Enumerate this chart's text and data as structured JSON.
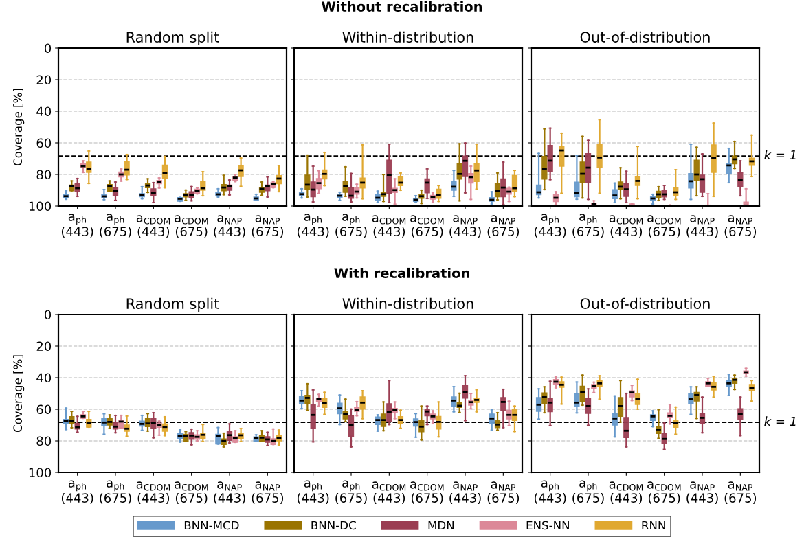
{
  "chart_data": [
    {
      "type": "box",
      "title": "Random split",
      "ylabel": "Coverage [%]",
      "annotations": [
        "Without recalibration"
      ],
      "categories": [
        "a$_{ph}$\n(443)",
        "a$_{ph}$\n(675)",
        "a$_{CDOM}$\n(443)",
        "a$_{CDOM}$\n(675)",
        "a$_{NAP}$\n(443)",
        "a$_{NAP}$\n(675)"
      ],
      "ylim": [
        100,
        0
      ],
      "yticks": [
        0,
        20,
        40,
        60,
        80,
        100
      ],
      "grid": "y",
      "legend": "bottom",
      "ref_lines": [
        {
          "axis": "y",
          "value": 68.3,
          "line_style": "dashed",
          "color": "#000000"
        }
      ],
      "series": [
        {
          "name": "BNN-MCD",
          "color": "#6699cc",
          "boxes": [
            {
              "low": 90.3,
              "q1": 92.9,
              "median": 93.8,
              "q3": 94.9,
              "high": 95.7
            },
            {
              "low": 89.6,
              "q1": 92.9,
              "median": 93.9,
              "q3": 94.9,
              "high": 96.0
            },
            {
              "low": 87.8,
              "q1": 92.2,
              "median": 93.0,
              "q3": 94.2,
              "high": 95.4
            },
            {
              "low": 94.6,
              "q1": 94.6,
              "median": 95.4,
              "q3": 97.0,
              "high": 97.0
            },
            {
              "low": 89.1,
              "q1": 91.4,
              "median": 92.6,
              "q3": 93.6,
              "high": 94.3
            },
            {
              "low": 92.6,
              "q1": 94.3,
              "median": 95.2,
              "q3": 96.4,
              "high": 96.4
            }
          ]
        },
        {
          "name": "BNN-DC",
          "color": "#9a7400",
          "boxes": [
            {
              "low": 84.1,
              "q1": 86.7,
              "median": 87.5,
              "q3": 90.3,
              "high": 90.3
            },
            {
              "low": 84.1,
              "q1": 86.4,
              "median": 87.4,
              "q3": 90.6,
              "high": 90.6
            },
            {
              "low": 82.8,
              "q1": 85.5,
              "median": 87.0,
              "q3": 88.4,
              "high": 91.4
            },
            {
              "low": 89.9,
              "q1": 92.2,
              "median": 93.0,
              "q3": 94.3,
              "high": 96.4
            },
            {
              "low": 80.6,
              "q1": 86.4,
              "median": 88.3,
              "q3": 90.3,
              "high": 92.8
            },
            {
              "low": 84.8,
              "q1": 88.4,
              "median": 89.1,
              "q3": 91.3,
              "high": 93.2
            }
          ]
        },
        {
          "name": "MDN",
          "color": "#9b3d52",
          "boxes": [
            {
              "low": 82.6,
              "q1": 86.0,
              "median": 88.7,
              "q3": 91.0,
              "high": 93.9
            },
            {
              "low": 84.8,
              "q1": 88.4,
              "median": 90.4,
              "q3": 93.2,
              "high": 96.4
            },
            {
              "low": 85.2,
              "q1": 89.1,
              "median": 91.7,
              "q3": 93.6,
              "high": 97.8
            },
            {
              "low": 87.7,
              "q1": 91.0,
              "median": 93.2,
              "q3": 94.6,
              "high": 96.7
            },
            {
              "low": 83.5,
              "q1": 86.7,
              "median": 87.5,
              "q3": 90.0,
              "high": 93.0
            },
            {
              "low": 81.6,
              "q1": 86.7,
              "median": 87.5,
              "q3": 90.3,
              "high": 94.3
            }
          ]
        },
        {
          "name": "ENS-NN",
          "color": "#dc8898",
          "boxes": [
            {
              "low": 71.4,
              "q1": 72.9,
              "median": 74.8,
              "q3": 75.8,
              "high": 78.7
            },
            {
              "low": 76.5,
              "q1": 78.4,
              "median": 80.0,
              "q3": 81.6,
              "high": 84.2
            },
            {
              "low": 82.2,
              "q1": 83.8,
              "median": 84.6,
              "q3": 85.9,
              "high": 88.6
            },
            {
              "low": 88.6,
              "q1": 89.3,
              "median": 90.3,
              "q3": 92.2,
              "high": 92.3
            },
            {
              "low": 80.1,
              "q1": 81.2,
              "median": 82.0,
              "q3": 83.8,
              "high": 84.5
            },
            {
              "low": 84.5,
              "q1": 85.2,
              "median": 86.2,
              "q3": 88.3,
              "high": 88.4
            }
          ]
        },
        {
          "name": "RNN",
          "color": "#e0a830",
          "boxes": [
            {
              "low": 65.2,
              "q1": 72.2,
              "median": 76.5,
              "q3": 78.7,
              "high": 85.7
            },
            {
              "low": 67.4,
              "q1": 71.9,
              "median": 77.0,
              "q3": 80.4,
              "high": 83.2
            },
            {
              "low": 68.6,
              "q1": 74.1,
              "median": 79.1,
              "q3": 82.3,
              "high": 88.4
            },
            {
              "low": 78.3,
              "q1": 84.5,
              "median": 88.7,
              "q3": 90.0,
              "high": 93.5
            },
            {
              "low": 69.6,
              "q1": 74.3,
              "median": 77.4,
              "q3": 81.3,
              "high": 87.5
            },
            {
              "low": 74.5,
              "q1": 80.7,
              "median": 82.6,
              "q3": 85.9,
              "high": 90.9
            }
          ]
        }
      ]
    },
    {
      "type": "box",
      "title": "Within-distribution",
      "categories": [
        "a$_{ph}$\n(443)",
        "a$_{ph}$\n(675)",
        "a$_{CDOM}$\n(443)",
        "a$_{CDOM}$\n(675)",
        "a$_{NAP}$\n(443)",
        "a$_{NAP}$\n(675)"
      ],
      "ylim": [
        100,
        0
      ],
      "yticks": [
        0,
        20,
        40,
        60,
        80,
        100
      ],
      "tick_labels": "x",
      "grid": "y",
      "ref_lines": [
        {
          "axis": "y",
          "value": 68.3,
          "line_style": "dashed",
          "color": "#000000"
        }
      ],
      "series": [
        {
          "color": "#6699cc",
          "boxes": [
            {
              "low": 89.1,
              "q1": 91.3,
              "median": 92.5,
              "q3": 93.2,
              "high": 94.9
            },
            {
              "low": 91.3,
              "q1": 92.6,
              "median": 93.5,
              "q3": 94.6,
              "high": 96.4
            },
            {
              "low": 90.6,
              "q1": 92.9,
              "median": 94.8,
              "q3": 96.4,
              "high": 97.8
            },
            {
              "low": 93.5,
              "q1": 95.1,
              "median": 96.1,
              "q3": 97.1,
              "high": 97.8
            },
            {
              "low": 77.5,
              "q1": 84.2,
              "median": 87.8,
              "q3": 90.0,
              "high": 93.9
            },
            {
              "low": 91.0,
              "q1": 94.6,
              "median": 96.1,
              "q3": 97.0,
              "high": 98.7
            }
          ]
        },
        {
          "color": "#9a7400",
          "boxes": [
            {
              "low": 67.8,
              "q1": 80.4,
              "median": 86.5,
              "q3": 89.3,
              "high": 94.3
            },
            {
              "low": 75.2,
              "q1": 84.2,
              "median": 87.4,
              "q3": 91.3,
              "high": 93.9
            },
            {
              "low": 80.1,
              "q1": 91.4,
              "median": 92.5,
              "q3": 93.9,
              "high": 97.1
            },
            {
              "low": 90.0,
              "q1": 92.6,
              "median": 93.8,
              "q3": 95.1,
              "high": 98.4
            },
            {
              "low": 60.6,
              "q1": 73.3,
              "median": 79.7,
              "q3": 83.0,
              "high": 96.7
            },
            {
              "low": 79.1,
              "q1": 85.9,
              "median": 90.4,
              "q3": 94.2,
              "high": 96.1
            }
          ]
        },
        {
          "color": "#9b3d52",
          "boxes": [
            {
              "low": 74.8,
              "q1": 84.8,
              "median": 89.6,
              "q3": 94.2,
              "high": 97.4
            },
            {
              "low": 79.4,
              "q1": 88.1,
              "median": 93.5,
              "q3": 95.1,
              "high": 97.4
            },
            {
              "low": 60.9,
              "q1": 71.0,
              "median": 80.4,
              "q3": 92.0,
              "high": 97.8
            },
            {
              "low": 76.5,
              "q1": 82.8,
              "median": 85.2,
              "q3": 91.7,
              "high": 95.2
            },
            {
              "low": 60.1,
              "q1": 68.3,
              "median": 71.4,
              "q3": 81.3,
              "high": 91.7
            },
            {
              "low": 72.2,
              "q1": 82.8,
              "median": 88.3,
              "q3": 94.2,
              "high": 99.0
            }
          ]
        },
        {
          "color": "#dc8898",
          "boxes": [
            {
              "low": 77.7,
              "q1": 82.6,
              "median": 85.5,
              "q3": 89.1,
              "high": 92.0
            },
            {
              "low": 86.2,
              "q1": 88.1,
              "median": 90.9,
              "q3": 92.5,
              "high": 94.9
            },
            {
              "low": 82.8,
              "q1": 88.8,
              "median": 89.9,
              "q3": 91.4,
              "high": 98.8
            },
            {
              "low": 91.4,
              "q1": 93.2,
              "median": 94.2,
              "q3": 95.7,
              "high": 97.8
            },
            {
              "low": 74.8,
              "q1": 79.4,
              "median": 81.7,
              "q3": 85.5,
              "high": 95.8
            },
            {
              "low": 88.1,
              "q1": 88.8,
              "median": 90.9,
              "q3": 92.5,
              "high": 97.1
            }
          ]
        },
        {
          "color": "#e0a830",
          "boxes": [
            {
              "low": 66.1,
              "q1": 77.2,
              "median": 79.7,
              "q3": 82.8,
              "high": 87.1
            },
            {
              "low": 61.3,
              "q1": 82.3,
              "median": 85.2,
              "q3": 88.6,
              "high": 95.4
            },
            {
              "low": 79.1,
              "q1": 81.2,
              "median": 85.2,
              "q3": 87.1,
              "high": 90.0
            },
            {
              "low": 87.1,
              "q1": 89.3,
              "median": 93.0,
              "q3": 95.1,
              "high": 97.1
            },
            {
              "low": 60.9,
              "q1": 73.2,
              "median": 77.5,
              "q3": 84.5,
              "high": 89.3
            },
            {
              "low": 77.5,
              "q1": 80.6,
              "median": 88.7,
              "q3": 91.0,
              "high": 94.1
            }
          ]
        }
      ]
    },
    {
      "type": "box",
      "title": "Out-of-distribution",
      "annotations": [
        "k = 1"
      ],
      "categories": [
        "a$_{ph}$\n(443)",
        "a$_{ph}$\n(675)",
        "a$_{CDOM}$\n(443)",
        "a$_{CDOM}$\n(675)",
        "a$_{NAP}$\n(443)",
        "a$_{NAP}$\n(675)"
      ],
      "ylim": [
        100,
        0
      ],
      "yticks": [
        0,
        20,
        40,
        60,
        80,
        100
      ],
      "tick_labels": "x",
      "grid": "y",
      "ref_lines": [
        {
          "axis": "y",
          "value": 68.3,
          "line_style": "dashed",
          "color": "#000000"
        }
      ],
      "series": [
        {
          "color": "#6699cc",
          "boxes": [
            {
              "low": 66.7,
              "q1": 86.7,
              "median": 91.3,
              "q3": 92.9,
              "high": 94.9
            },
            {
              "low": 68.0,
              "q1": 84.9,
              "median": 91.7,
              "q3": 94.2,
              "high": 95.7
            },
            {
              "low": 85.5,
              "q1": 89.6,
              "median": 93.3,
              "q3": 95.4,
              "high": 97.8
            },
            {
              "low": 92.6,
              "q1": 94.2,
              "median": 95.2,
              "q3": 96.4,
              "high": 98.7
            },
            {
              "low": 60.9,
              "q1": 79.4,
              "median": 84.3,
              "q3": 88.6,
              "high": 95.8
            },
            {
              "low": 63.5,
              "q1": 73.3,
              "median": 74.3,
              "q3": 79.7,
              "high": 85.2
            }
          ]
        },
        {
          "color": "#9a7400",
          "boxes": [
            {
              "low": 51.2,
              "q1": 68.6,
              "median": 76.5,
              "q3": 83.0,
              "high": 89.6
            },
            {
              "low": 55.9,
              "q1": 72.2,
              "median": 79.6,
              "q3": 84.9,
              "high": 94.9
            },
            {
              "low": 75.8,
              "q1": 84.8,
              "median": 87.8,
              "q3": 89.6,
              "high": 95.4
            },
            {
              "low": 87.8,
              "q1": 90.6,
              "median": 92.6,
              "q3": 94.6,
              "high": 96.5
            },
            {
              "low": 62.8,
              "q1": 71.0,
              "median": 80.0,
              "q3": 83.8,
              "high": 93.5
            },
            {
              "low": 59.1,
              "q1": 68.3,
              "median": 70.4,
              "q3": 73.3,
              "high": 76.2
            }
          ]
        },
        {
          "color": "#9b3d52",
          "boxes": [
            {
              "low": 50.7,
              "q1": 61.6,
              "median": 71.3,
              "q3": 78.3,
              "high": 83.3
            },
            {
              "low": 58.4,
              "q1": 66.8,
              "median": 75.7,
              "q3": 84.9,
              "high": 95.8
            },
            {
              "low": 78.0,
              "q1": 85.9,
              "median": 89.4,
              "q3": 93.9,
              "high": 97.8
            },
            {
              "low": 87.0,
              "q1": 90.3,
              "median": 92.6,
              "q3": 94.3,
              "high": 95.8
            },
            {
              "low": 67.0,
              "q1": 80.4,
              "median": 83.0,
              "q3": 91.3,
              "high": 93.9
            },
            {
              "low": 71.4,
              "q1": 78.7,
              "median": 83.5,
              "q3": 87.7,
              "high": 93.5
            }
          ]
        },
        {
          "color": "#dc8898",
          "boxes": [
            {
              "low": 91.0,
              "q1": 92.6,
              "median": 94.8,
              "q3": 97.2,
              "high": 99.0
            },
            {
              "low": 96.7,
              "q1": 98.1,
              "median": 98.7,
              "q3": 100,
              "high": 100
            },
            {
              "low": 98.7,
              "q1": 98.7,
              "median": 99.8,
              "q3": 100,
              "high": 100
            },
            {
              "low": 99.4,
              "q1": 99.6,
              "median": 99.8,
              "q3": 100,
              "high": 100
            },
            {
              "low": 92.2,
              "q1": 99.4,
              "median": 99.9,
              "q3": 100,
              "high": 100
            },
            {
              "low": 89.1,
              "q1": 97.5,
              "median": 99.7,
              "q3": 100,
              "high": 100
            }
          ]
        },
        {
          "color": "#e0a830",
          "boxes": [
            {
              "low": 53.9,
              "q1": 62.5,
              "median": 64.8,
              "q3": 74.8,
              "high": 91.9
            },
            {
              "low": 45.4,
              "q1": 61.0,
              "median": 69.3,
              "q3": 75.8,
              "high": 91.9
            },
            {
              "low": 62.3,
              "q1": 81.2,
              "median": 84.1,
              "q3": 87.0,
              "high": 95.4
            },
            {
              "low": 77.0,
              "q1": 88.1,
              "median": 91.3,
              "q3": 93.2,
              "high": 95.8
            },
            {
              "low": 47.5,
              "q1": 61.3,
              "median": 69.6,
              "q3": 78.7,
              "high": 93.9
            },
            {
              "low": 55.1,
              "q1": 69.6,
              "median": 71.7,
              "q3": 74.3,
              "high": 81.3
            }
          ]
        }
      ]
    },
    {
      "type": "box",
      "title": "Random split",
      "ylabel": "Coverage [%]",
      "annotations": [
        "With recalibration"
      ],
      "categories": [
        "a$_{ph}$\n(443)",
        "a$_{ph}$\n(675)",
        "a$_{CDOM}$\n(443)",
        "a$_{CDOM}$\n(675)",
        "a$_{NAP}$\n(443)",
        "a$_{NAP}$\n(675)"
      ],
      "ylim": [
        100,
        0
      ],
      "yticks": [
        0,
        20,
        40,
        60,
        80,
        100
      ],
      "grid": "y",
      "ref_lines": [
        {
          "axis": "y",
          "value": 68.3,
          "line_style": "dashed",
          "color": "#000000"
        }
      ],
      "series": [
        {
          "color": "#6699cc",
          "boxes": [
            {
              "low": 59.3,
              "q1": 66.4,
              "median": 67.5,
              "q3": 68.8,
              "high": 72.8
            },
            {
              "low": 62.9,
              "q1": 65.9,
              "median": 68.4,
              "q3": 70.4,
              "high": 75.8
            },
            {
              "low": 63.9,
              "q1": 67.5,
              "median": 69.3,
              "q3": 70.7,
              "high": 73.3
            },
            {
              "low": 73.0,
              "q1": 75.4,
              "median": 77.0,
              "q3": 78.4,
              "high": 80.7
            },
            {
              "low": 71.6,
              "q1": 75.8,
              "median": 77.0,
              "q3": 82.0,
              "high": 82.0
            },
            {
              "low": 76.2,
              "q1": 77.5,
              "median": 78.4,
              "q3": 80.1,
              "high": 80.1
            }
          ]
        },
        {
          "color": "#9a7400",
          "boxes": [
            {
              "low": 61.4,
              "q1": 64.6,
              "median": 67.5,
              "q3": 69.0,
              "high": 71.7
            },
            {
              "low": 63.6,
              "q1": 65.7,
              "median": 68.0,
              "q3": 70.0,
              "high": 72.0
            },
            {
              "low": 62.8,
              "q1": 65.9,
              "median": 69.0,
              "q3": 71.0,
              "high": 73.8
            },
            {
              "low": 74.2,
              "q1": 75.8,
              "median": 77.0,
              "q3": 80.1,
              "high": 80.3
            },
            {
              "low": 75.2,
              "q1": 78.8,
              "median": 80.1,
              "q3": 82.3,
              "high": 83.8
            },
            {
              "low": 73.6,
              "q1": 76.5,
              "median": 78.0,
              "q3": 80.3,
              "high": 80.3
            }
          ]
        },
        {
          "color": "#9b3d52",
          "boxes": [
            {
              "low": 64.5,
              "q1": 69.0,
              "median": 71.3,
              "q3": 72.5,
              "high": 74.5
            },
            {
              "low": 63.9,
              "q1": 68.6,
              "median": 71.0,
              "q3": 72.5,
              "high": 74.9
            },
            {
              "low": 62.2,
              "q1": 65.9,
              "median": 68.8,
              "q3": 72.2,
              "high": 78.1
            },
            {
              "low": 72.6,
              "q1": 74.8,
              "median": 76.7,
              "q3": 79.1,
              "high": 82.5
            },
            {
              "low": 69.3,
              "q1": 73.9,
              "median": 76.4,
              "q3": 79.7,
              "high": 81.3
            },
            {
              "low": 74.6,
              "q1": 77.4,
              "median": 79.1,
              "q3": 80.9,
              "high": 82.9
            }
          ]
        },
        {
          "color": "#dc8898",
          "boxes": [
            {
              "low": 61.4,
              "q1": 63.5,
              "median": 64.5,
              "q3": 65.7,
              "high": 65.7
            },
            {
              "low": 63.9,
              "q1": 66.8,
              "median": 67.8,
              "q3": 71.9,
              "high": 72.0
            },
            {
              "low": 67.5,
              "q1": 68.8,
              "median": 70.1,
              "q3": 71.4,
              "high": 76.4
            },
            {
              "low": 73.6,
              "q1": 76.2,
              "median": 77.5,
              "q3": 79.1,
              "high": 80.0
            },
            {
              "low": 73.6,
              "q1": 77.4,
              "median": 78.4,
              "q3": 80.9,
              "high": 80.9
            },
            {
              "low": 72.5,
              "q1": 78.7,
              "median": 80.1,
              "q3": 82.3,
              "high": 82.3
            }
          ]
        },
        {
          "color": "#e0a830",
          "boxes": [
            {
              "low": 61.4,
              "q1": 66.4,
              "median": 68.7,
              "q3": 71.3,
              "high": 71.3
            },
            {
              "low": 64.3,
              "q1": 70.0,
              "median": 72.3,
              "q3": 73.9,
              "high": 77.1
            },
            {
              "low": 64.8,
              "q1": 69.3,
              "median": 71.2,
              "q3": 73.9,
              "high": 76.7
            },
            {
              "low": 69.7,
              "q1": 75.1,
              "median": 76.2,
              "q3": 78.4,
              "high": 80.4
            },
            {
              "low": 72.2,
              "q1": 75.1,
              "median": 76.5,
              "q3": 78.4,
              "high": 80.4
            },
            {
              "low": 73.2,
              "q1": 76.8,
              "median": 78.4,
              "q3": 80.0,
              "high": 82.6
            }
          ]
        }
      ]
    },
    {
      "type": "box",
      "title": "Within-distribution",
      "categories": [
        "a$_{ph}$\n(443)",
        "a$_{ph}$\n(675)",
        "a$_{CDOM}$\n(443)",
        "a$_{CDOM}$\n(675)",
        "a$_{NAP}$\n(443)",
        "a$_{NAP}$\n(675)"
      ],
      "ylim": [
        100,
        0
      ],
      "yticks": [
        0,
        20,
        40,
        60,
        80,
        100
      ],
      "tick_labels": "x",
      "grid": "y",
      "ref_lines": [
        {
          "axis": "y",
          "value": 68.3,
          "line_style": "dashed",
          "color": "#000000"
        }
      ],
      "series": [
        {
          "color": "#6699cc",
          "boxes": [
            {
              "low": 48.3,
              "q1": 51.6,
              "median": 54.5,
              "q3": 56.5,
              "high": 59.6
            },
            {
              "low": 51.0,
              "q1": 56.2,
              "median": 59.4,
              "q3": 62.8,
              "high": 69.7
            },
            {
              "low": 63.6,
              "q1": 64.9,
              "median": 66.8,
              "q3": 69.7,
              "high": 73.8
            },
            {
              "low": 62.8,
              "q1": 66.1,
              "median": 68.1,
              "q3": 70.7,
              "high": 77.7
            },
            {
              "low": 45.7,
              "q1": 52.2,
              "median": 54.5,
              "q3": 58.0,
              "high": 61.6
            },
            {
              "low": 60.3,
              "q1": 63.0,
              "median": 65.8,
              "q3": 69.0,
              "high": 73.2
            }
          ]
        },
        {
          "color": "#9a7400",
          "boxes": [
            {
              "low": 43.9,
              "q1": 51.2,
              "median": 52.8,
              "q3": 56.2,
              "high": 60.6
            },
            {
              "low": 53.6,
              "q1": 61.3,
              "median": 63.2,
              "q3": 66.1,
              "high": 67.8
            },
            {
              "low": 55.4,
              "q1": 63.0,
              "median": 66.8,
              "q3": 70.9,
              "high": 73.6
            },
            {
              "low": 58.0,
              "q1": 67.0,
              "median": 71.0,
              "q3": 74.3,
              "high": 79.4
            },
            {
              "low": 49.9,
              "q1": 55.9,
              "median": 57.8,
              "q3": 58.8,
              "high": 62.0
            },
            {
              "low": 62.2,
              "q1": 67.0,
              "median": 69.7,
              "q3": 71.7,
              "high": 73.2
            }
          ]
        },
        {
          "color": "#9b3d52",
          "boxes": [
            {
              "low": 47.8,
              "q1": 57.0,
              "median": 63.6,
              "q3": 71.9,
              "high": 80.6
            },
            {
              "low": 59.9,
              "q1": 63.9,
              "median": 70.1,
              "q3": 77.2,
              "high": 83.8
            },
            {
              "low": 41.9,
              "q1": 56.5,
              "median": 61.9,
              "q3": 67.8,
              "high": 69.7
            },
            {
              "low": 58.0,
              "q1": 59.9,
              "median": 61.4,
              "q3": 64.2,
              "high": 69.7
            },
            {
              "low": 38.8,
              "q1": 44.6,
              "median": 49.3,
              "q3": 53.0,
              "high": 67.2
            },
            {
              "low": 47.4,
              "q1": 52.6,
              "median": 55.4,
              "q3": 61.0,
              "high": 71.6
            }
          ]
        },
        {
          "color": "#dc8898",
          "boxes": [
            {
              "low": 50.6,
              "q1": 52.9,
              "median": 53.6,
              "q3": 55.1,
              "high": 58.0
            },
            {
              "low": 55.2,
              "q1": 58.7,
              "median": 60.6,
              "q3": 61.3,
              "high": 64.1
            },
            {
              "low": 55.4,
              "q1": 59.4,
              "median": 60.6,
              "q3": 62.2,
              "high": 65.9
            },
            {
              "low": 61.0,
              "q1": 63.0,
              "median": 64.5,
              "q3": 66.1,
              "high": 68.8
            },
            {
              "low": 50.1,
              "q1": 54.5,
              "median": 55.5,
              "q3": 57.4,
              "high": 59.7
            },
            {
              "low": 54.9,
              "q1": 60.6,
              "median": 63.6,
              "q3": 66.1,
              "high": 70.3
            }
          ]
        },
        {
          "color": "#e0a830",
          "boxes": [
            {
              "low": 49.3,
              "q1": 53.3,
              "median": 56.2,
              "q3": 58.8,
              "high": 63.2
            },
            {
              "low": 48.3,
              "q1": 52.2,
              "median": 55.8,
              "q3": 59.9,
              "high": 65.9
            },
            {
              "low": 60.6,
              "q1": 64.6,
              "median": 66.8,
              "q3": 69.0,
              "high": 72.0
            },
            {
              "low": 55.4,
              "q1": 64.5,
              "median": 68.0,
              "q3": 72.5,
              "high": 77.5
            },
            {
              "low": 47.7,
              "q1": 53.3,
              "median": 54.1,
              "q3": 55.7,
              "high": 61.6
            },
            {
              "low": 58.0,
              "q1": 60.3,
              "median": 63.6,
              "q3": 67.1,
              "high": 74.1
            }
          ]
        }
      ]
    },
    {
      "type": "box",
      "title": "Out-of-distribution",
      "annotations": [
        "k = 1"
      ],
      "categories": [
        "a$_{ph}$\n(443)",
        "a$_{ph}$\n(675)",
        "a$_{CDOM}$\n(443)",
        "a$_{CDOM}$\n(675)",
        "a$_{NAP}$\n(443)",
        "a$_{NAP}$\n(675)"
      ],
      "ylim": [
        100,
        0
      ],
      "yticks": [
        0,
        20,
        40,
        60,
        80,
        100
      ],
      "tick_labels": "x",
      "grid": "y",
      "ref_lines": [
        {
          "axis": "y",
          "value": 68.3,
          "line_style": "dashed",
          "color": "#000000"
        }
      ],
      "series": [
        {
          "color": "#6699cc",
          "boxes": [
            {
              "low": 47.1,
              "q1": 52.6,
              "median": 57.1,
              "q3": 61.3,
              "high": 66.2
            },
            {
              "low": 42.8,
              "q1": 50.0,
              "median": 55.8,
              "q3": 58.3,
              "high": 62.3
            },
            {
              "low": 51.6,
              "q1": 62.8,
              "median": 65.8,
              "q3": 70.0,
              "high": 77.5
            },
            {
              "low": 61.0,
              "q1": 63.5,
              "median": 64.5,
              "q3": 67.1,
              "high": 71.0
            },
            {
              "low": 45.8,
              "q1": 50.0,
              "median": 53.6,
              "q3": 56.7,
              "high": 63.2
            },
            {
              "low": 38.0,
              "q1": 41.7,
              "median": 43.6,
              "q3": 45.4,
              "high": 51.2
            }
          ]
        },
        {
          "color": "#9a7400",
          "boxes": [
            {
              "low": 45.8,
              "q1": 49.7,
              "median": 52.3,
              "q3": 56.5,
              "high": 62.2
            },
            {
              "low": 38.4,
              "q1": 45.4,
              "median": 49.3,
              "q3": 55.2,
              "high": 57.4
            },
            {
              "low": 41.9,
              "q1": 52.6,
              "median": 58.0,
              "q3": 64.5,
              "high": 68.1
            },
            {
              "low": 60.3,
              "q1": 71.0,
              "median": 72.8,
              "q3": 75.4,
              "high": 78.4
            },
            {
              "low": 45.8,
              "q1": 49.3,
              "median": 51.0,
              "q3": 54.8,
              "high": 65.8
            },
            {
              "low": 38.4,
              "q1": 40.3,
              "median": 41.4,
              "q3": 43.6,
              "high": 47.5
            }
          ]
        },
        {
          "color": "#9b3d52",
          "boxes": [
            {
              "low": 42.3,
              "q1": 53.3,
              "median": 55.8,
              "q3": 61.6,
              "high": 70.3
            },
            {
              "low": 47.1,
              "q1": 53.0,
              "median": 58.0,
              "q3": 62.6,
              "high": 70.1
            },
            {
              "low": 50.0,
              "q1": 65.2,
              "median": 73.6,
              "q3": 78.0,
              "high": 83.8
            },
            {
              "low": 68.8,
              "q1": 75.1,
              "median": 78.8,
              "q3": 81.9,
              "high": 85.4
            },
            {
              "low": 52.3,
              "q1": 62.8,
              "median": 65.4,
              "q3": 68.8,
              "high": 74.9
            },
            {
              "low": 52.3,
              "q1": 59.6,
              "median": 63.2,
              "q3": 66.5,
              "high": 76.7
            }
          ]
        },
        {
          "color": "#dc8898",
          "boxes": [
            {
              "low": 39.3,
              "q1": 41.2,
              "median": 42.6,
              "q3": 44.3,
              "high": 46.4
            },
            {
              "low": 42.9,
              "q1": 44.3,
              "median": 45.4,
              "q3": 46.8,
              "high": 49.4
            },
            {
              "low": 44.9,
              "q1": 48.3,
              "median": 49.4,
              "q3": 52.2,
              "high": 54.5
            },
            {
              "low": 57.1,
              "q1": 62.3,
              "median": 64.1,
              "q3": 65.2,
              "high": 69.3
            },
            {
              "low": 40.4,
              "q1": 42.6,
              "median": 43.6,
              "q3": 45.4,
              "high": 45.4
            },
            {
              "low": 34.1,
              "q1": 35.7,
              "median": 36.5,
              "q3": 37.4,
              "high": 39.0
            }
          ]
        },
        {
          "color": "#e0a830",
          "boxes": [
            {
              "low": 39.7,
              "q1": 42.6,
              "median": 44.5,
              "q3": 46.1,
              "high": 56.7
            },
            {
              "low": 38.8,
              "q1": 41.7,
              "median": 43.6,
              "q3": 45.7,
              "high": 53.6
            },
            {
              "low": 41.0,
              "q1": 50.0,
              "median": 53.6,
              "q3": 57.0,
              "high": 59.9
            },
            {
              "low": 58.6,
              "q1": 66.8,
              "median": 68.8,
              "q3": 71.4,
              "high": 75.8
            },
            {
              "low": 39.3,
              "q1": 42.9,
              "median": 45.8,
              "q3": 47.8,
              "high": 52.3
            },
            {
              "low": 41.9,
              "q1": 44.3,
              "median": 46.4,
              "q3": 48.3,
              "high": 54.8
            }
          ]
        }
      ]
    }
  ]
}
